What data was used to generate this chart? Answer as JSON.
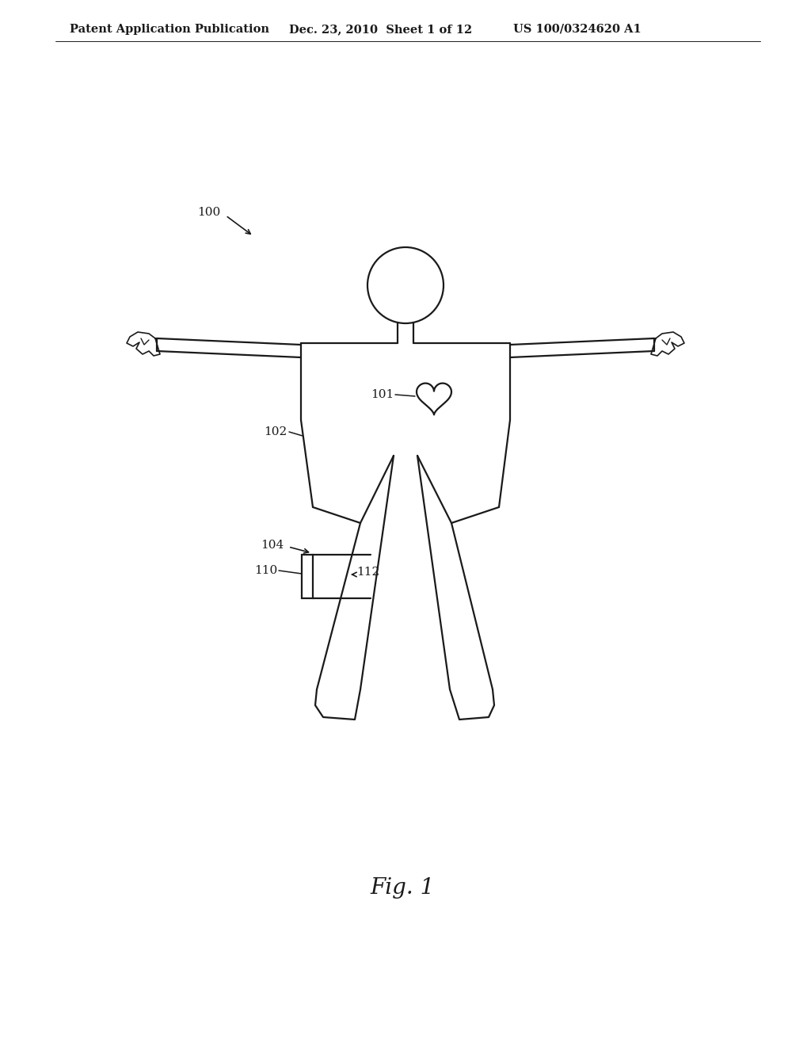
{
  "bg_color": "#ffffff",
  "line_color": "#1a1a1a",
  "header_left": "Patent Application Publication",
  "header_mid": "Dec. 23, 2010  Sheet 1 of 12",
  "header_right": "US 100/0324620 A1",
  "fig_label": "Fig. 1",
  "label_100": "100",
  "label_101": "101",
  "label_102": "102",
  "label_104": "104",
  "label_110": "110",
  "label_112": "112"
}
